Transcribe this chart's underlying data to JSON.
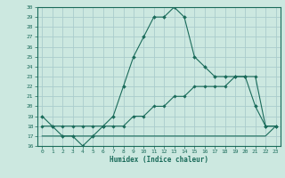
{
  "title": "",
  "xlabel": "Humidex (Indice chaleur)",
  "ylabel": "",
  "background_color": "#cce8e0",
  "grid_color": "#aacccc",
  "line_color": "#1a6b5a",
  "xlim": [
    -0.5,
    23.5
  ],
  "ylim": [
    16,
    30
  ],
  "xticks": [
    0,
    1,
    2,
    3,
    4,
    5,
    6,
    7,
    8,
    9,
    10,
    11,
    12,
    13,
    14,
    15,
    16,
    17,
    18,
    19,
    20,
    21,
    22,
    23
  ],
  "yticks": [
    16,
    17,
    18,
    19,
    20,
    21,
    22,
    23,
    24,
    25,
    26,
    27,
    28,
    29,
    30
  ],
  "line1_x": [
    0,
    1,
    2,
    3,
    4,
    5,
    6,
    7,
    8,
    9,
    10,
    11,
    12,
    13,
    14,
    15,
    16,
    17,
    18,
    19,
    20,
    21,
    22,
    23
  ],
  "line1_y": [
    19,
    18,
    17,
    17,
    16,
    17,
    18,
    19,
    22,
    25,
    27,
    29,
    29,
    30,
    29,
    25,
    24,
    23,
    23,
    23,
    23,
    20,
    18,
    18
  ],
  "line2_x": [
    0,
    1,
    2,
    3,
    4,
    5,
    6,
    7,
    8,
    9,
    10,
    11,
    12,
    13,
    14,
    15,
    16,
    17,
    18,
    19,
    20,
    21,
    22,
    23
  ],
  "line2_y": [
    17,
    17,
    17,
    17,
    17,
    17,
    17,
    17,
    17,
    17,
    17,
    17,
    17,
    17,
    17,
    17,
    17,
    17,
    17,
    17,
    17,
    17,
    17,
    18
  ],
  "line3_x": [
    0,
    1,
    2,
    3,
    4,
    5,
    6,
    7,
    8,
    9,
    10,
    11,
    12,
    13,
    14,
    15,
    16,
    17,
    18,
    19,
    20,
    21,
    22,
    23
  ],
  "line3_y": [
    18,
    18,
    18,
    18,
    18,
    18,
    18,
    18,
    18,
    19,
    19,
    20,
    20,
    21,
    21,
    22,
    22,
    22,
    22,
    23,
    23,
    23,
    18,
    18
  ]
}
